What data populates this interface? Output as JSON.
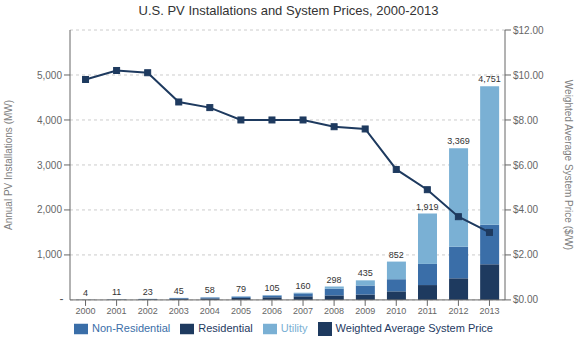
{
  "chart_data": {
    "type": "bar",
    "title": "U.S. PV Installations and System Prices, 2000-2013",
    "categories": [
      "2000",
      "2001",
      "2002",
      "2003",
      "2004",
      "2005",
      "2006",
      "2007",
      "2008",
      "2009",
      "2010",
      "2011",
      "2012",
      "2013"
    ],
    "stacked": true,
    "grid": true,
    "legend": "bottom",
    "series": [
      {
        "name": "Residential",
        "type": "bar",
        "color": "#1e3a5f",
        "values": [
          3,
          7,
          14,
          27,
          33,
          45,
          58,
          80,
          100,
          120,
          190,
          330,
          480,
          792
        ]
      },
      {
        "name": "Non-Residential",
        "type": "bar",
        "color": "#3a6ea8",
        "values": [
          1,
          3,
          8,
          15,
          21,
          28,
          40,
          65,
          148,
          200,
          270,
          470,
          700,
          880
        ]
      },
      {
        "name": "Utility",
        "type": "bar",
        "color": "#7ab0d4",
        "values": [
          0,
          1,
          1,
          3,
          4,
          6,
          7,
          15,
          50,
          115,
          392,
          1119,
          2189,
          3079
        ]
      },
      {
        "name": "Weighted Average System Price",
        "type": "line",
        "axis": "y2",
        "color": "#1e3a5f",
        "marker": "square",
        "values": [
          9.8,
          10.2,
          10.1,
          8.8,
          8.55,
          8.0,
          8.0,
          8.0,
          7.7,
          7.6,
          5.8,
          4.9,
          3.7,
          3.0
        ]
      }
    ],
    "totals": [
      4,
      11,
      23,
      45,
      58,
      79,
      105,
      160,
      298,
      435,
      852,
      1919,
      3369,
      4751
    ],
    "total_labels": [
      "4",
      "11",
      "23",
      "45",
      "58",
      "79",
      "105",
      "160",
      "298",
      "435",
      "852",
      "1,919",
      "3,369",
      "4,751"
    ],
    "annotations": [
      {
        "text": "-",
        "y": 20
      }
    ],
    "ylabel": "Annual PV Installations (MW)",
    "y2label": "Weighted Average System Price ($/W)",
    "ylim": [
      0,
      6000
    ],
    "yticks": [
      {
        "value": 1000,
        "label": "1,000"
      },
      {
        "value": 2000,
        "label": "2,000"
      },
      {
        "value": 3000,
        "label": "3,000"
      },
      {
        "value": 4000,
        "label": "4,000"
      },
      {
        "value": 5000,
        "label": "5,000"
      }
    ],
    "y2lim": [
      0,
      12.0
    ],
    "y2ticks": [
      {
        "value": 0.0,
        "label": "$0.00"
      },
      {
        "value": 2.0,
        "label": "$2.00"
      },
      {
        "value": 4.0,
        "label": "$4.00"
      },
      {
        "value": 6.0,
        "label": "$6.00"
      },
      {
        "value": 8.0,
        "label": "$8.00"
      },
      {
        "value": 10.0,
        "label": "$10.00"
      },
      {
        "value": 12.0,
        "label": "$12.00"
      }
    ]
  }
}
